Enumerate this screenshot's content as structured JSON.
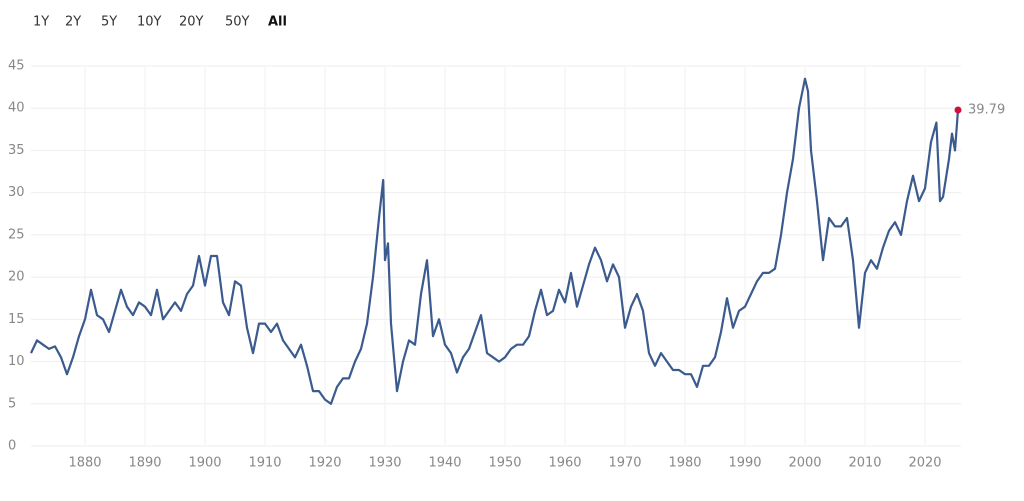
{
  "range_buttons": [
    "1Y",
    "2Y",
    "5Y",
    "10Y",
    "20Y",
    "50Y",
    "All"
  ],
  "active_button": 6,
  "chart_data": {
    "type": "line",
    "xlim": [
      1871,
      2026
    ],
    "xticks": [
      1880,
      1890,
      1900,
      1910,
      1920,
      1930,
      1940,
      1950,
      1960,
      1970,
      1980,
      1990,
      2000,
      2010,
      2020
    ],
    "ylim": [
      0,
      45
    ],
    "yticks": [
      0,
      5,
      10,
      15,
      20,
      25,
      30,
      35,
      40,
      45
    ],
    "grid": true,
    "series": [
      {
        "color": "#3b5b8e",
        "end_marker_color": "#d0103a",
        "x": [
          1871,
          1872,
          1873,
          1874,
          1875,
          1876,
          1877,
          1878,
          1879,
          1880,
          1881,
          1882,
          1883,
          1884,
          1885,
          1886,
          1887,
          1888,
          1889,
          1890,
          1891,
          1892,
          1893,
          1894,
          1895,
          1896,
          1897,
          1898,
          1899,
          1900,
          1901,
          1902,
          1903,
          1904,
          1905,
          1906,
          1907,
          1908,
          1909,
          1910,
          1911,
          1912,
          1913,
          1914,
          1915,
          1916,
          1917,
          1918,
          1919,
          1920,
          1921,
          1922,
          1923,
          1924,
          1925,
          1926,
          1927,
          1928,
          1929,
          1929.7,
          1930,
          1930.5,
          1931,
          1932,
          1933,
          1934,
          1935,
          1936,
          1937,
          1938,
          1939,
          1940,
          1941,
          1942,
          1943,
          1944,
          1945,
          1946,
          1947,
          1948,
          1949,
          1950,
          1951,
          1952,
          1953,
          1954,
          1955,
          1956,
          1957,
          1958,
          1959,
          1960,
          1961,
          1962,
          1963,
          1964,
          1965,
          1966,
          1967,
          1968,
          1969,
          1970,
          1971,
          1972,
          1973,
          1974,
          1975,
          1976,
          1977,
          1978,
          1979,
          1980,
          1981,
          1982,
          1983,
          1984,
          1985,
          1986,
          1987,
          1988,
          1989,
          1990,
          1991,
          1992,
          1993,
          1994,
          1995,
          1996,
          1997,
          1998,
          1999,
          2000,
          2000.5,
          2001,
          2002,
          2003,
          2004,
          2005,
          2006,
          2007,
          2008,
          2009,
          2010,
          2011,
          2012,
          2013,
          2014,
          2015,
          2016,
          2017,
          2018,
          2019,
          2020,
          2021,
          2021.9,
          2022.5,
          2023,
          2024,
          2024.5,
          2025,
          2025.5
        ],
        "values": [
          11,
          12.5,
          12,
          11.5,
          11.8,
          10.5,
          8.5,
          10.5,
          13,
          15,
          18.5,
          15.5,
          15,
          13.5,
          16,
          18.5,
          16.5,
          15.5,
          17,
          16.5,
          15.5,
          18.5,
          15,
          16,
          17,
          16,
          18,
          19,
          22.5,
          19,
          22.5,
          22.5,
          17,
          15.5,
          19.5,
          19,
          14,
          11,
          14.5,
          14.5,
          13.5,
          14.5,
          12.5,
          11.5,
          10.5,
          12,
          9.5,
          6.5,
          6.5,
          5.5,
          5,
          7,
          8,
          8,
          10,
          11.5,
          14.5,
          20,
          27,
          31.5,
          22,
          24,
          14.5,
          6.5,
          10,
          12.5,
          12,
          18,
          22,
          13,
          15,
          12,
          11,
          8.7,
          10.5,
          11.5,
          13.5,
          15.5,
          11,
          10.5,
          10,
          10.5,
          11.5,
          12,
          12,
          13,
          16,
          18.5,
          15.5,
          16,
          18.5,
          17,
          20.5,
          16.5,
          19,
          21.5,
          23.5,
          22,
          19.5,
          21.5,
          20,
          14,
          16.5,
          18,
          16,
          11,
          9.5,
          11,
          10,
          9,
          9,
          8.5,
          8.5,
          7,
          9.5,
          9.5,
          10.5,
          13.5,
          17.5,
          14,
          16,
          16.5,
          18,
          19.5,
          20.5,
          20.5,
          21,
          25,
          30,
          34,
          40,
          43.5,
          42,
          35,
          29,
          22,
          27,
          26,
          26,
          27,
          22,
          14,
          20.5,
          22,
          21,
          23.5,
          25.5,
          26.5,
          25,
          29,
          32,
          29,
          30.5,
          36,
          38.3,
          29,
          29.5,
          34,
          37,
          35,
          39.79
        ]
      }
    ]
  }
}
